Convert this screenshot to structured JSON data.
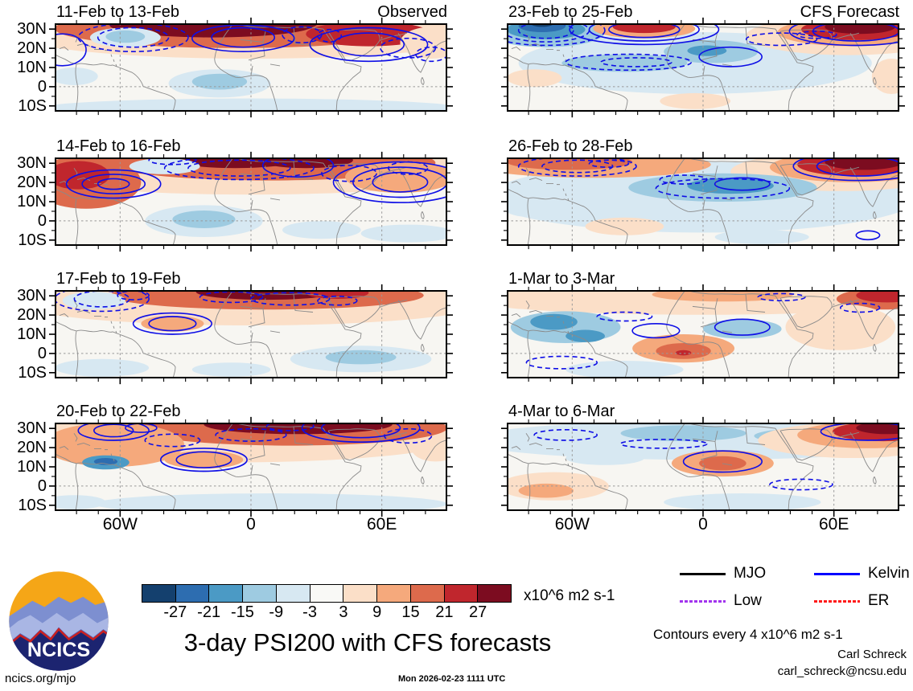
{
  "chart_data": {
    "type": "heatmap",
    "title": "3-day PSI200 with CFS forecasts",
    "columns": [
      "Observed",
      "CFS Forecast"
    ],
    "y_ticks": [
      "30N",
      "20N",
      "10N",
      "0",
      "10S"
    ],
    "y_tick_lats": [
      30,
      20,
      10,
      0,
      -10
    ],
    "x_ticks": [
      "60W",
      "0",
      "60E"
    ],
    "x_tick_lons": [
      -60,
      0,
      60
    ],
    "lon_range": [
      -90,
      90
    ],
    "lat_range": [
      33,
      -13
    ],
    "colorbar": {
      "levels": [
        "-27",
        "-21",
        "-15",
        "-9",
        "-3",
        "3",
        "9",
        "15",
        "21",
        "27"
      ],
      "colors": [
        "#14406e",
        "#2d6db0",
        "#4b9ac5",
        "#9ecbe1",
        "#d7e8f2",
        "#f9f9f6",
        "#fbdfc8",
        "#f5a97c",
        "#dd6a4c",
        "#c0262d",
        "#7c0c20"
      ],
      "unit_label": "x10^6 m2 s-1"
    },
    "legend": [
      {
        "label": "MJO",
        "color": "#000000",
        "dash": "none"
      },
      {
        "label": "Kelvin x2",
        "color": "#0000ff",
        "dash": "none"
      },
      {
        "label": "Low",
        "color": "#a234ee",
        "dash": "dot"
      },
      {
        "label": "ER",
        "color": "#ff1a1a",
        "dash": "dot"
      }
    ],
    "contour_note": "Contours every 4 x10^6 m2 s-1",
    "contour_color": "#0f0fe6",
    "panels": [
      {
        "title": "11-Feb to 13-Feb",
        "corner_label": "Observed",
        "blobs": [
          [
            50,
            10,
            62,
            30,
            "c6"
          ],
          [
            46,
            6,
            46,
            22,
            "c8"
          ],
          [
            40,
            2,
            26,
            14,
            "c10"
          ],
          [
            57,
            0,
            10,
            9,
            "c10"
          ],
          [
            80,
            12,
            16,
            14,
            "c9"
          ],
          [
            96,
            22,
            8,
            18,
            "c6"
          ],
          [
            18,
            16,
            9,
            11,
            "c4"
          ],
          [
            18,
            15,
            5,
            7,
            "c3"
          ],
          [
            42,
            68,
            13,
            16,
            "c4"
          ],
          [
            42,
            66,
            7,
            9,
            "c3"
          ],
          [
            50,
            97,
            55,
            12,
            "c4"
          ],
          [
            5,
            60,
            6,
            10,
            "c4"
          ]
        ],
        "solid": [
          [
            48,
            16,
            8,
            11
          ],
          [
            48,
            17,
            13,
            15
          ],
          [
            80,
            24,
            9,
            13
          ],
          [
            80,
            24,
            15,
            19
          ],
          [
            2,
            30,
            6,
            18
          ]
        ],
        "dashed": [
          [
            20,
            16,
            9,
            11
          ],
          [
            20,
            16,
            14,
            16
          ],
          [
            63,
            13,
            5,
            9
          ],
          [
            70,
            14,
            3,
            7
          ],
          [
            90,
            28,
            7,
            11
          ],
          [
            96,
            35,
            4,
            8
          ]
        ]
      },
      {
        "title": "23-Feb to 25-Feb",
        "corner_label": "CFS Forecast",
        "blobs": [
          [
            48,
            45,
            45,
            35,
            "c4"
          ],
          [
            10,
            10,
            15,
            17,
            "c3"
          ],
          [
            10,
            7,
            10,
            11,
            "c2"
          ],
          [
            9,
            3,
            6,
            7,
            "c1"
          ],
          [
            9,
            0,
            3,
            4,
            "c0"
          ],
          [
            35,
            6,
            13,
            11,
            "c7"
          ],
          [
            35,
            4,
            8,
            7,
            "c9"
          ],
          [
            52,
            32,
            12,
            13,
            "c3"
          ],
          [
            51,
            31,
            5,
            6,
            "c2"
          ],
          [
            30,
            45,
            16,
            10,
            "c3"
          ],
          [
            87,
            14,
            26,
            22,
            "c6"
          ],
          [
            88,
            10,
            19,
            16,
            "c7"
          ],
          [
            89,
            7,
            14,
            12,
            "c9"
          ],
          [
            90,
            4,
            9,
            8,
            "c10"
          ],
          [
            7,
            62,
            7,
            10,
            "c6"
          ],
          [
            48,
            88,
            9,
            9,
            "c6"
          ],
          [
            98,
            60,
            5,
            20,
            "c6"
          ]
        ],
        "solid": [
          [
            35,
            7,
            9,
            9
          ],
          [
            35,
            7,
            14,
            13
          ],
          [
            35,
            7,
            19,
            17
          ],
          [
            57,
            38,
            8,
            11
          ],
          [
            89,
            9,
            11,
            11
          ],
          [
            89,
            9,
            17,
            16
          ]
        ],
        "dashed": [
          [
            10,
            8,
            7,
            9
          ],
          [
            10,
            8,
            11,
            13
          ],
          [
            10,
            8,
            15,
            17
          ],
          [
            31,
            44,
            16,
            9
          ],
          [
            33,
            44,
            9,
            5
          ],
          [
            70,
            18,
            9,
            7
          ],
          [
            79,
            13,
            5,
            4
          ]
        ]
      },
      {
        "title": "14-Feb to 16-Feb",
        "corner_label": "",
        "blobs": [
          [
            50,
            12,
            62,
            30,
            "c6"
          ],
          [
            55,
            6,
            42,
            20,
            "c8"
          ],
          [
            46,
            2,
            16,
            10,
            "c10"
          ],
          [
            64,
            3,
            12,
            9,
            "c10"
          ],
          [
            8,
            28,
            14,
            30,
            "c8"
          ],
          [
            6,
            20,
            8,
            16,
            "c9"
          ],
          [
            88,
            22,
            14,
            18,
            "c7"
          ],
          [
            28,
            10,
            9,
            9,
            "c4"
          ],
          [
            38,
            72,
            15,
            18,
            "c4"
          ],
          [
            38,
            70,
            8,
            10,
            "c3"
          ],
          [
            68,
            82,
            10,
            10,
            "c4"
          ],
          [
            90,
            86,
            12,
            10,
            "c4"
          ]
        ],
        "solid": [
          [
            15,
            30,
            4,
            6
          ],
          [
            15,
            30,
            8,
            11
          ],
          [
            15,
            30,
            12,
            16
          ],
          [
            62,
            9,
            9,
            13
          ],
          [
            88,
            28,
            7,
            11
          ],
          [
            88,
            28,
            12,
            17
          ],
          [
            88,
            28,
            17,
            23
          ]
        ],
        "dashed": [
          [
            47,
            12,
            13,
            9
          ],
          [
            47,
            12,
            19,
            13
          ],
          [
            75,
            18,
            7,
            9
          ],
          [
            90,
            12,
            5,
            7
          ],
          [
            30,
            3,
            6,
            5
          ]
        ]
      },
      {
        "title": "26-Feb to 28-Feb",
        "corner_label": "",
        "blobs": [
          [
            50,
            45,
            55,
            40,
            "c4"
          ],
          [
            22,
            8,
            30,
            15,
            "c7"
          ],
          [
            16,
            5,
            16,
            9,
            "c8"
          ],
          [
            85,
            16,
            28,
            22,
            "c6"
          ],
          [
            88,
            11,
            21,
            17,
            "c7"
          ],
          [
            89,
            8,
            15,
            13,
            "c9"
          ],
          [
            91,
            5,
            10,
            9,
            "c10"
          ],
          [
            55,
            34,
            24,
            16,
            "c3"
          ],
          [
            57,
            32,
            11,
            9,
            "c2"
          ],
          [
            30,
            78,
            10,
            10,
            "c6"
          ],
          [
            5,
            55,
            6,
            12,
            "c4"
          ],
          [
            65,
            90,
            12,
            8,
            "c4"
          ]
        ],
        "solid": [
          [
            90,
            10,
            11,
            11
          ],
          [
            90,
            10,
            17,
            16
          ],
          [
            60,
            30,
            7,
            7
          ],
          [
            92,
            88,
            3,
            5
          ]
        ],
        "dashed": [
          [
            18,
            10,
            9,
            7
          ],
          [
            18,
            10,
            15,
            11
          ],
          [
            26,
            7,
            5,
            4
          ],
          [
            55,
            35,
            17,
            11
          ],
          [
            45,
            25,
            6,
            5
          ]
        ]
      },
      {
        "title": "17-Feb to 19-Feb",
        "corner_label": "",
        "blobs": [
          [
            50,
            14,
            60,
            26,
            "c6"
          ],
          [
            54,
            6,
            40,
            16,
            "c8"
          ],
          [
            54,
            2,
            18,
            9,
            "c10"
          ],
          [
            72,
            3,
            8,
            7,
            "c9"
          ],
          [
            30,
            38,
            8,
            9,
            "c7"
          ],
          [
            10,
            12,
            8,
            10,
            "c4"
          ],
          [
            78,
            78,
            18,
            15,
            "c4"
          ],
          [
            78,
            76,
            9,
            8,
            "c3"
          ],
          [
            12,
            88,
            12,
            10,
            "c4"
          ],
          [
            45,
            90,
            10,
            8,
            "c4"
          ]
        ],
        "solid": [
          [
            30,
            38,
            6,
            8
          ],
          [
            30,
            38,
            10,
            12
          ]
        ],
        "dashed": [
          [
            12,
            10,
            7,
            9
          ],
          [
            12,
            10,
            12,
            14
          ],
          [
            20,
            6,
            4,
            5
          ],
          [
            45,
            8,
            8,
            6
          ],
          [
            60,
            10,
            10,
            7
          ],
          [
            72,
            12,
            5,
            5
          ]
        ]
      },
      {
        "title": "1-Mar to 3-Mar",
        "corner_label": "",
        "blobs": [
          [
            50,
            10,
            60,
            18,
            "c6"
          ],
          [
            55,
            5,
            18,
            8,
            "c7"
          ],
          [
            96,
            10,
            12,
            12,
            "c8"
          ],
          [
            97,
            6,
            8,
            8,
            "c9"
          ],
          [
            15,
            42,
            14,
            18,
            "c3"
          ],
          [
            12,
            36,
            6,
            9,
            "c2"
          ],
          [
            20,
            52,
            5,
            7,
            "c2"
          ],
          [
            85,
            42,
            14,
            26,
            "c6"
          ],
          [
            45,
            66,
            13,
            16,
            "c7"
          ],
          [
            45,
            69,
            7,
            9,
            "c8"
          ],
          [
            45,
            71,
            2,
            3,
            "c9"
          ],
          [
            60,
            44,
            10,
            11,
            "c3"
          ],
          [
            30,
            90,
            15,
            10,
            "c4"
          ]
        ],
        "solid": [
          [
            38,
            46,
            6,
            8
          ],
          [
            60,
            42,
            7,
            9
          ]
        ],
        "dashed": [
          [
            14,
            82,
            9,
            7
          ],
          [
            30,
            30,
            7,
            5
          ],
          [
            70,
            8,
            6,
            4
          ],
          [
            90,
            20,
            5,
            5
          ]
        ]
      },
      {
        "title": "20-Feb to 22-Feb",
        "corner_label": "",
        "blobs": [
          [
            45,
            15,
            60,
            30,
            "c6"
          ],
          [
            60,
            6,
            40,
            20,
            "c8"
          ],
          [
            62,
            2,
            24,
            11,
            "c10"
          ],
          [
            15,
            25,
            18,
            25,
            "c7"
          ],
          [
            13,
            45,
            6,
            8,
            "c2"
          ],
          [
            13,
            44,
            3,
            4,
            "c1"
          ],
          [
            38,
            42,
            10,
            10,
            "c7"
          ],
          [
            55,
            92,
            45,
            12,
            "c4"
          ],
          [
            5,
            90,
            8,
            8,
            "c4"
          ],
          [
            97,
            30,
            6,
            14,
            "c6"
          ]
        ],
        "solid": [
          [
            15,
            9,
            5,
            7
          ],
          [
            15,
            9,
            9,
            11
          ],
          [
            22,
            6,
            4,
            5
          ],
          [
            38,
            42,
            7,
            9
          ],
          [
            38,
            42,
            11,
            13
          ],
          [
            78,
            6,
            10,
            11
          ],
          [
            78,
            6,
            15,
            16
          ]
        ],
        "dashed": [
          [
            30,
            20,
            7,
            7
          ],
          [
            50,
            14,
            9,
            7
          ],
          [
            60,
            4,
            6,
            5
          ],
          [
            90,
            15,
            6,
            8
          ]
        ]
      },
      {
        "title": "4-Mar to 6-Mar",
        "corner_label": "",
        "blobs": [
          [
            50,
            20,
            60,
            22,
            "c4"
          ],
          [
            45,
            12,
            16,
            9,
            "c3"
          ],
          [
            75,
            15,
            12,
            8,
            "c3"
          ],
          [
            12,
            72,
            14,
            16,
            "c6"
          ],
          [
            10,
            77,
            7,
            8,
            "c7"
          ],
          [
            88,
            20,
            24,
            20,
            "c6"
          ],
          [
            92,
            14,
            18,
            15,
            "c7"
          ],
          [
            96,
            10,
            13,
            11,
            "c9"
          ],
          [
            97,
            6,
            8,
            7,
            "c10"
          ],
          [
            55,
            46,
            13,
            15,
            "c7"
          ],
          [
            55,
            46,
            6,
            8,
            "c8"
          ],
          [
            60,
            90,
            20,
            10,
            "c4"
          ],
          [
            25,
            40,
            10,
            8,
            "c4"
          ]
        ],
        "solid": [
          [
            55,
            44,
            10,
            12
          ],
          [
            92,
            10,
            12,
            10
          ]
        ],
        "dashed": [
          [
            15,
            14,
            8,
            6
          ],
          [
            40,
            24,
            11,
            5
          ],
          [
            75,
            70,
            8,
            6
          ]
        ]
      }
    ]
  },
  "footer": {
    "site_link": "ncics.org/mjo",
    "timestamp": "Mon 2026-02-23 1111 UTC",
    "author": "Carl Schreck",
    "email": "carl_schreck@ncsu.edu",
    "logo_text": "NCICS"
  }
}
